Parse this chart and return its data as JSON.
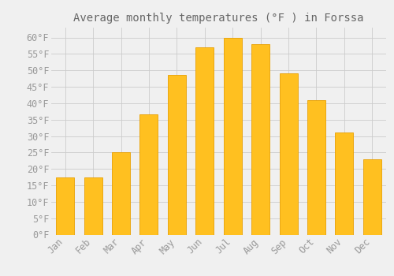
{
  "title": "Average monthly temperatures (°F ) in Forssa",
  "months": [
    "Jan",
    "Feb",
    "Mar",
    "Apr",
    "May",
    "Jun",
    "Jul",
    "Aug",
    "Sep",
    "Oct",
    "Nov",
    "Dec"
  ],
  "values": [
    17.5,
    17.5,
    25.0,
    36.5,
    48.5,
    57.0,
    60.0,
    58.0,
    49.0,
    41.0,
    31.0,
    23.0
  ],
  "bar_color": "#FFC020",
  "bar_edge_color": "#E8A000",
  "background_color": "#F0F0F0",
  "grid_color": "#CCCCCC",
  "text_color": "#999999",
  "title_color": "#666666",
  "ylim": [
    0,
    63
  ],
  "yticks": [
    0,
    5,
    10,
    15,
    20,
    25,
    30,
    35,
    40,
    45,
    50,
    55,
    60
  ],
  "title_fontsize": 10,
  "tick_fontsize": 8.5
}
